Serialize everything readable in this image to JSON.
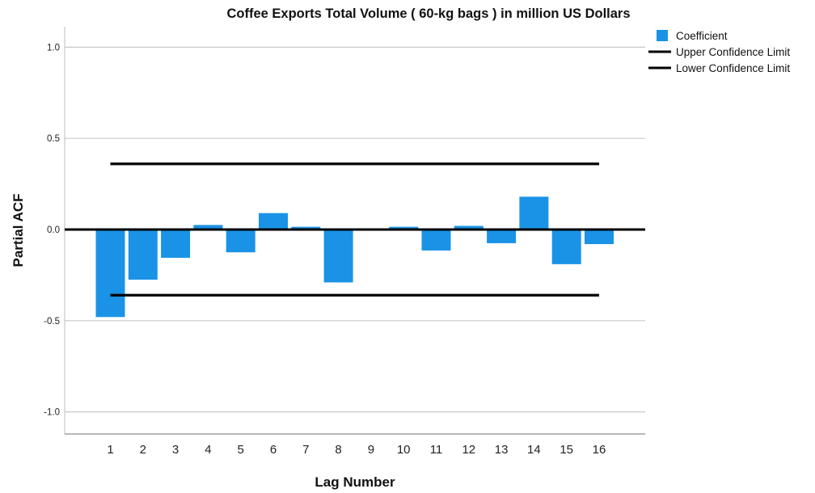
{
  "chart_data": {
    "type": "bar",
    "title": "Coffee Exports Total Volume ( 60-kg bags ) in million US Dollars",
    "xlabel": "Lag Number",
    "ylabel": "Partial ACF",
    "categories": [
      "1",
      "2",
      "3",
      "4",
      "5",
      "6",
      "7",
      "8",
      "9",
      "10",
      "11",
      "12",
      "13",
      "14",
      "15",
      "16"
    ],
    "series": [
      {
        "name": "Coefficient",
        "values": [
          -0.48,
          -0.275,
          -0.155,
          0.025,
          -0.125,
          0.09,
          0.015,
          -0.29,
          0.0,
          0.015,
          -0.115,
          0.02,
          -0.075,
          0.18,
          -0.19,
          -0.08
        ]
      }
    ],
    "confidence_limits": {
      "upper_name": "Upper Confidence Limit",
      "lower_name": "Lower Confidence Limit",
      "upper": 0.36,
      "lower": -0.36
    },
    "yticks": [
      "-1.0",
      "-0.5",
      "0.0",
      "0.5",
      "1.0"
    ],
    "ylim": [
      -1.1,
      1.1
    ],
    "grid": "horizontal",
    "legend_position": "top-right",
    "colors": {
      "bar": "#1a93e6",
      "limit_line": "#000000",
      "zero_line": "#000000",
      "grid": "#c8c8c8"
    }
  }
}
